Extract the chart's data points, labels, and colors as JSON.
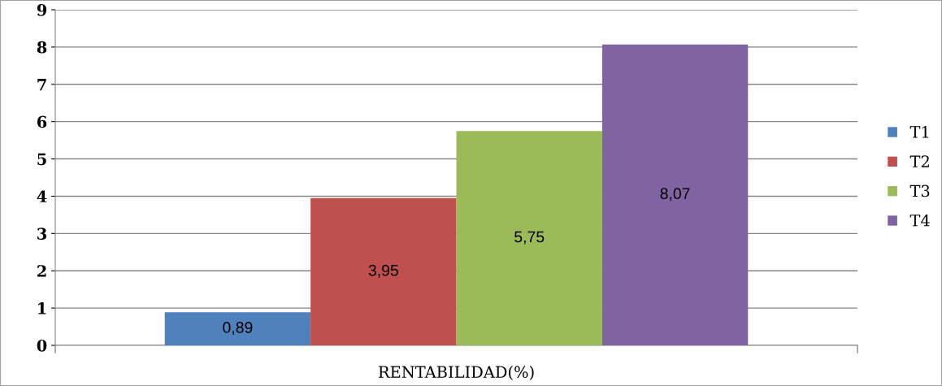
{
  "chart_data": {
    "type": "bar",
    "categories": [
      "RENTABILIDAD(%)"
    ],
    "series": [
      {
        "name": "T1",
        "color": "#4f81bd",
        "values": [
          0.89
        ],
        "value_labels": [
          "0,89"
        ]
      },
      {
        "name": "T2",
        "color": "#c0504d",
        "values": [
          3.95
        ],
        "value_labels": [
          "3,95"
        ]
      },
      {
        "name": "T3",
        "color": "#9bbb59",
        "values": [
          5.75
        ],
        "value_labels": [
          "5,75"
        ]
      },
      {
        "name": "T4",
        "color": "#8064a2",
        "values": [
          8.07
        ],
        "value_labels": [
          "8,07"
        ]
      }
    ],
    "ylim": [
      0,
      9
    ],
    "yticks": [
      0,
      1,
      2,
      3,
      4,
      5,
      6,
      7,
      8,
      9
    ],
    "grid": "y",
    "legend": "right"
  }
}
